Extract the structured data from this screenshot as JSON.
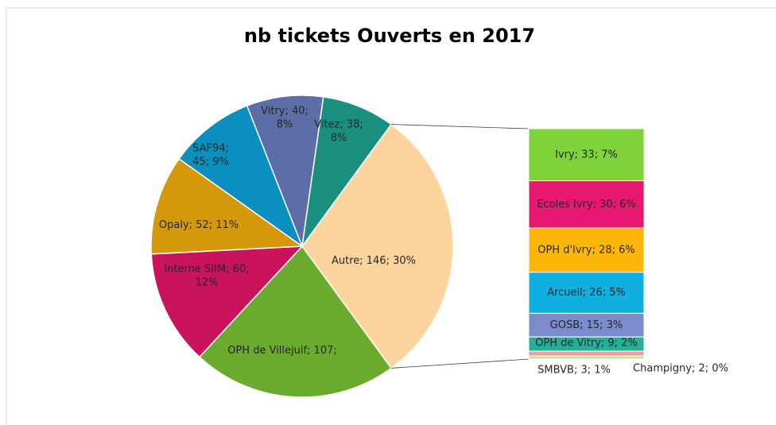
{
  "chart_data": {
    "type": "bar-of-pie",
    "title": "nb tickets Ouverts en 2017",
    "pie": {
      "values": [
        146,
        107,
        60,
        52,
        45,
        40,
        38
      ],
      "value_labels": [
        "Autre; 146; 30%",
        "OPH de Villejuif; 107; 22%",
        "Interne SIIM; 60; 12%",
        "Opaly; 52; 11%",
        "SAF94; 45; 9%",
        "Vitry; 40; 8%",
        "Vitez; 38; 8%"
      ],
      "colors": [
        "#fdd49e",
        "#6aaa2e",
        "#c9135b",
        "#d4990a",
        "#0a8fc0",
        "#5b6ea8",
        "#1a8f7f"
      ]
    },
    "bar": {
      "values": [
        33,
        30,
        28,
        26,
        15,
        9,
        3,
        2
      ],
      "value_labels": [
        "Ivry; 33; 7%",
        "Ecoles Ivry; 30; 6%",
        "OPH d'Ivry; 28; 6%",
        "Arcueil; 26; 5%",
        "GOSB; 15; 3%",
        "OPH de Vitry; 9; 2%",
        "SMBVB; 3; 1%",
        "Champigny; 2; 0%"
      ],
      "colors": [
        "#7ed23a",
        "#e6186f",
        "#fdb60a",
        "#0fb0e0",
        "#7a8ccc",
        "#22b098",
        "#f29ba0",
        "#c8e09a"
      ]
    }
  }
}
